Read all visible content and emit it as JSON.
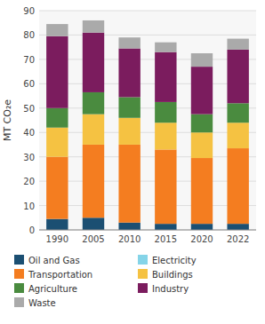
{
  "chart_data": {
    "type": "bar",
    "stacked": true,
    "ylabel": "MT CO₂e",
    "categories": [
      "1990",
      "2005",
      "2010",
      "2015",
      "2020",
      "2022"
    ],
    "series": [
      {
        "name": "Oil and Gas",
        "color": "#1b4f72",
        "values": [
          4.5,
          5.0,
          3.0,
          2.5,
          2.5,
          2.5
        ]
      },
      {
        "name": "Electricity",
        "color": "#85d4e8",
        "values": [
          null,
          null,
          null,
          null,
          null,
          null
        ]
      },
      {
        "name": "Transportation",
        "color": "#f47d20",
        "values": [
          25.5,
          30.0,
          32.0,
          30.5,
          27.0,
          31.0
        ]
      },
      {
        "name": "Buildings",
        "color": "#f5c242",
        "values": [
          12.0,
          12.5,
          11.0,
          11.0,
          10.5,
          10.5
        ]
      },
      {
        "name": "Agriculture",
        "color": "#4a8b3f",
        "values": [
          8.0,
          9.0,
          8.5,
          8.5,
          7.5,
          8.0
        ]
      },
      {
        "name": "Industry",
        "color": "#7b1c5e",
        "values": [
          29.5,
          24.5,
          20.0,
          20.5,
          19.5,
          22.0
        ]
      },
      {
        "name": "Waste",
        "color": "#aaaaaa",
        "values": [
          5.0,
          5.0,
          4.5,
          4.0,
          5.5,
          4.5
        ]
      }
    ],
    "ylim": [
      0,
      90
    ],
    "yticks": [
      0,
      10,
      20,
      30,
      40,
      50,
      60,
      70,
      80,
      90
    ],
    "grid": true,
    "legend": "bottom"
  }
}
